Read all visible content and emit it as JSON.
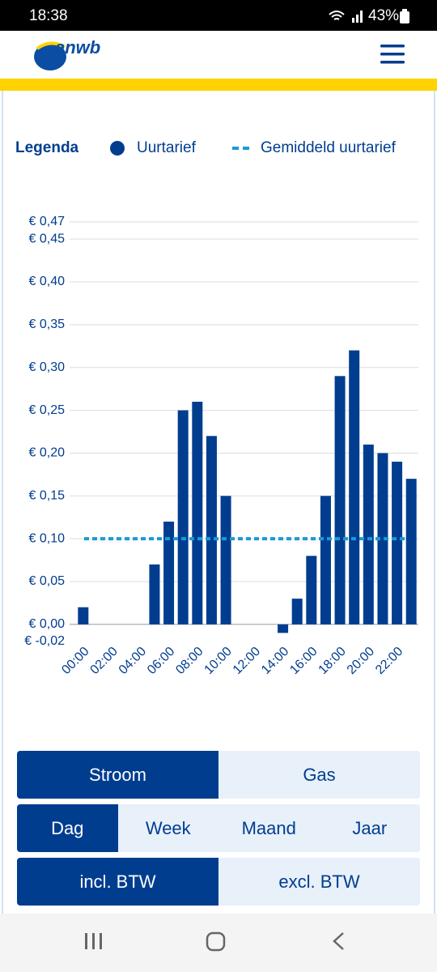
{
  "status_bar": {
    "time": "18:38",
    "battery": "43%"
  },
  "header": {
    "logo": "anwb"
  },
  "chart_data": {
    "type": "bar",
    "legend_title": "Legenda",
    "categories": [
      "00:00",
      null,
      "02:00",
      null,
      "04:00",
      null,
      "06:00",
      null,
      "08:00",
      null,
      "10:00",
      null,
      "12:00",
      null,
      "14:00",
      null,
      "16:00",
      null,
      "18:00",
      null,
      "20:00",
      null,
      "22:00",
      null
    ],
    "series": [
      {
        "name": "Uurtarief",
        "color": "#003d8f",
        "values": [
          0.02,
          0,
          0,
          0,
          0,
          0.07,
          0.12,
          0.25,
          0.26,
          0.22,
          0.15,
          0,
          0,
          0,
          -0.01,
          0.03,
          0.08,
          0.15,
          0.29,
          0.32,
          0.21,
          0.2,
          0.19,
          0.17
        ]
      }
    ],
    "average": {
      "name": "Gemiddeld uurtarief",
      "color": "#1a9ad6",
      "value": 0.1
    },
    "ylim": [
      -0.02,
      0.47
    ],
    "yticks": [
      {
        "value": -0.02,
        "label": "€ -0,02"
      },
      {
        "value": 0,
        "label": "€ 0,00"
      },
      {
        "value": 0.05,
        "label": "€ 0,05"
      },
      {
        "value": 0.1,
        "label": "€ 0,10"
      },
      {
        "value": 0.15,
        "label": "€ 0,15"
      },
      {
        "value": 0.2,
        "label": "€ 0,20"
      },
      {
        "value": 0.25,
        "label": "€ 0,25"
      },
      {
        "value": 0.3,
        "label": "€ 0,30"
      },
      {
        "value": 0.35,
        "label": "€ 0,35"
      },
      {
        "value": 0.4,
        "label": "€ 0,40"
      },
      {
        "value": 0.45,
        "label": "€ 0,45"
      },
      {
        "value": 0.47,
        "label": "€ 0,47"
      }
    ],
    "grid": true
  },
  "toggles": [
    {
      "options": [
        "Stroom",
        "Gas"
      ],
      "selected": 0
    },
    {
      "options": [
        "Dag",
        "Week",
        "Maand",
        "Jaar"
      ],
      "selected": 0
    },
    {
      "options": [
        "incl. BTW",
        "excl. BTW"
      ],
      "selected": 0
    }
  ]
}
